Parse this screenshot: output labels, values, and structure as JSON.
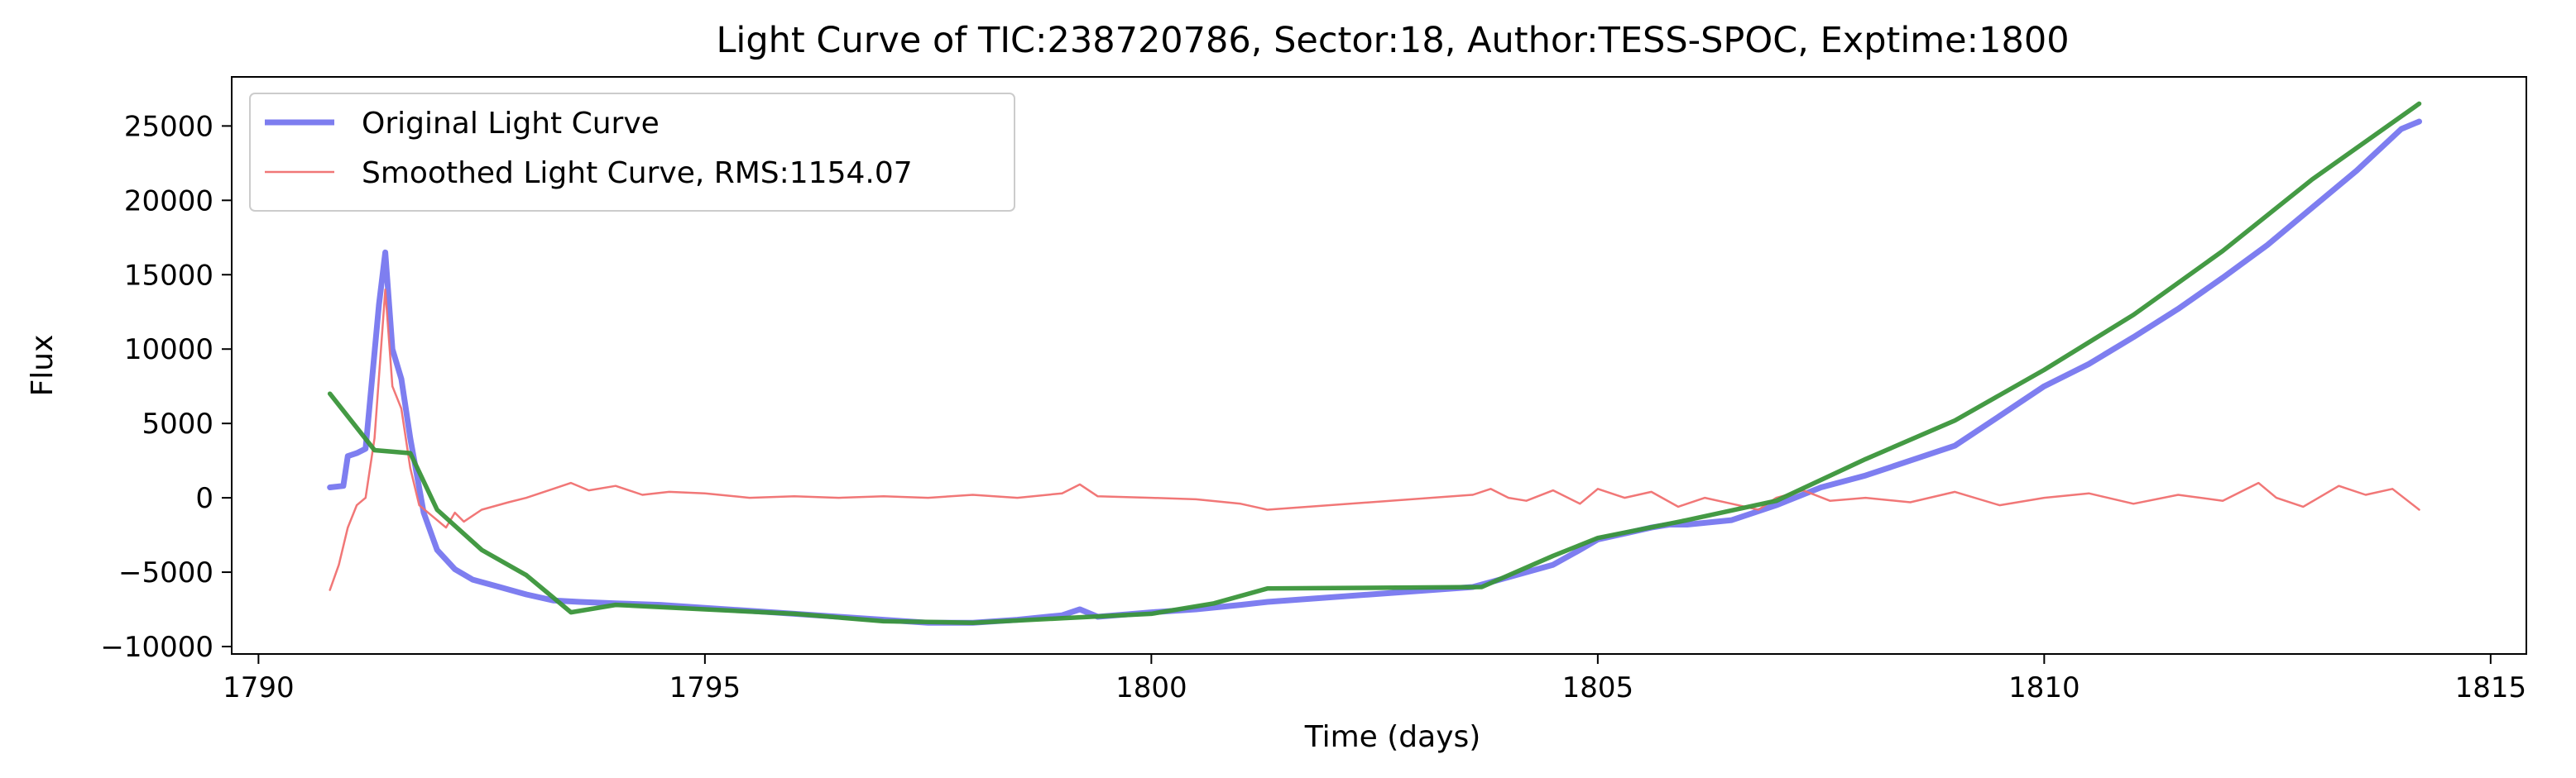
{
  "chart_data": {
    "type": "line",
    "title": "Light Curve of TIC:238720786, Sector:18, Author:TESS-SPOC, Exptime:1800",
    "xlabel": "Time (days)",
    "ylabel": "Flux",
    "xlim": [
      1789.7,
      1815.4
    ],
    "ylim": [
      -10500,
      28300
    ],
    "xticks": [
      1790,
      1795,
      1800,
      1805,
      1810,
      1815
    ],
    "yticks": [
      -10000,
      -5000,
      0,
      5000,
      10000,
      15000,
      20000,
      25000
    ],
    "grid": false,
    "legend_position": "top-left",
    "series": [
      {
        "name": "Original Light Curve",
        "color": "#7070ee",
        "x": [
          1790.8,
          1790.95,
          1791.0,
          1791.1,
          1791.2,
          1791.35,
          1791.42,
          1791.5,
          1791.6,
          1791.7,
          1791.85,
          1792.0,
          1792.2,
          1792.4,
          1792.7,
          1793.0,
          1793.3,
          1793.6,
          1794.0,
          1794.5,
          1795.0,
          1795.5,
          1796.0,
          1796.5,
          1797.0,
          1797.5,
          1798.0,
          1798.5,
          1799.0,
          1799.2,
          1799.4,
          1800.0,
          1800.5,
          1801.0,
          1801.3,
          1803.6,
          1803.9,
          1804.2,
          1804.5,
          1804.8,
          1805.0,
          1805.3,
          1805.6,
          1805.8,
          1806.0,
          1806.5,
          1807.0,
          1807.5,
          1808.0,
          1808.5,
          1809.0,
          1809.5,
          1810.0,
          1810.5,
          1811.0,
          1811.5,
          1812.0,
          1812.5,
          1813.0,
          1813.5,
          1814.0,
          1814.2
        ],
        "y": [
          700,
          800,
          2800,
          3000,
          3300,
          13000,
          16500,
          10000,
          8000,
          4000,
          -1000,
          -3500,
          -4800,
          -5500,
          -6000,
          -6500,
          -6900,
          -7000,
          -7100,
          -7200,
          -7400,
          -7600,
          -7800,
          -8000,
          -8200,
          -8400,
          -8400,
          -8200,
          -7900,
          -7500,
          -8000,
          -7700,
          -7500,
          -7200,
          -7000,
          -6000,
          -5500,
          -5000,
          -4500,
          -3500,
          -2800,
          -2400,
          -2000,
          -1800,
          -1800,
          -1500,
          -500,
          700,
          1500,
          2500,
          3500,
          5500,
          7500,
          9000,
          10800,
          12700,
          14800,
          17000,
          19500,
          22000,
          24800,
          25300
        ]
      },
      {
        "name": "Smoothed Light Curve, RMS:1154.07",
        "color": "#f07070",
        "x": [
          1790.8,
          1790.9,
          1791.0,
          1791.1,
          1791.2,
          1791.3,
          1791.42,
          1791.5,
          1791.6,
          1791.7,
          1791.8,
          1791.9,
          1792.0,
          1792.1,
          1792.2,
          1792.3,
          1792.5,
          1792.8,
          1793.0,
          1793.3,
          1793.5,
          1793.7,
          1794.0,
          1794.3,
          1794.6,
          1795.0,
          1795.5,
          1796.0,
          1796.5,
          1797.0,
          1797.5,
          1798.0,
          1798.5,
          1799.0,
          1799.2,
          1799.4,
          1800.0,
          1800.5,
          1801.0,
          1801.3,
          1803.6,
          1803.8,
          1804.0,
          1804.2,
          1804.5,
          1804.8,
          1805.0,
          1805.3,
          1805.6,
          1805.9,
          1806.2,
          1806.5,
          1806.8,
          1807.0,
          1807.3,
          1807.6,
          1808.0,
          1808.5,
          1809.0,
          1809.5,
          1810.0,
          1810.5,
          1811.0,
          1811.5,
          1812.0,
          1812.4,
          1812.6,
          1812.9,
          1813.3,
          1813.6,
          1813.9,
          1814.2
        ],
        "y": [
          -6200,
          -4500,
          -2000,
          -500,
          0,
          4000,
          14000,
          7500,
          6000,
          2000,
          -500,
          -1000,
          -1500,
          -2000,
          -1000,
          -1600,
          -800,
          -300,
          0,
          600,
          1000,
          500,
          800,
          200,
          400,
          300,
          0,
          100,
          0,
          100,
          0,
          200,
          0,
          300,
          900,
          100,
          0,
          -100,
          -400,
          -800,
          200,
          600,
          0,
          -200,
          500,
          -400,
          600,
          0,
          400,
          -600,
          0,
          -400,
          -800,
          0,
          500,
          -200,
          0,
          -300,
          400,
          -500,
          0,
          300,
          -400,
          200,
          -200,
          1000,
          0,
          -600,
          800,
          200,
          600,
          -800
        ]
      },
      {
        "name": "",
        "color": "#3a953a",
        "x": [
          1790.8,
          1791.3,
          1791.7,
          1792.0,
          1792.5,
          1793.0,
          1793.5,
          1794.0,
          1795.0,
          1796.0,
          1797.0,
          1798.0,
          1799.0,
          1800.0,
          1800.7,
          1801.3,
          1803.7,
          1804.5,
          1805.0,
          1806.0,
          1807.0,
          1808.0,
          1809.0,
          1810.0,
          1811.0,
          1812.0,
          1813.0,
          1814.2
        ],
        "y": [
          7000,
          3200,
          3000,
          -800,
          -3500,
          -5200,
          -7700,
          -7200,
          -7500,
          -7800,
          -8300,
          -8400,
          -8100,
          -7800,
          -7100,
          -6100,
          -6000,
          -3900,
          -2700,
          -1500,
          -200,
          2600,
          5200,
          8600,
          12300,
          16600,
          21400,
          26500
        ]
      }
    ]
  }
}
